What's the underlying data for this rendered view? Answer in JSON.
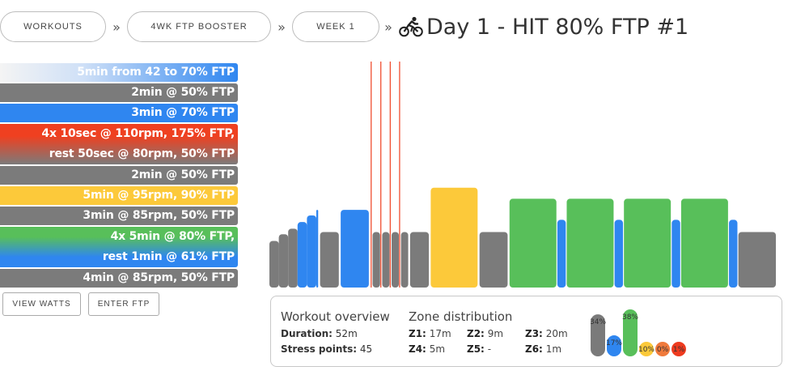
{
  "breadcrumb": {
    "items": [
      {
        "label": "WORKOUTS"
      },
      {
        "label": "4WK FTP BOOSTER"
      },
      {
        "label": "WEEK 1"
      }
    ],
    "separator": "»"
  },
  "page_title": "Day 1 - HIT 80% FTP #1",
  "intervals": [
    {
      "lines": [
        "5min from 42 to 70% FTP"
      ],
      "style": "ramp"
    },
    {
      "lines": [
        "2min @ 50% FTP"
      ],
      "style": "gray"
    },
    {
      "lines": [
        "3min @ 70% FTP"
      ],
      "style": "blue"
    },
    {
      "lines": [
        "4x 10sec @ 110rpm, 175% FTP,",
        "rest 50sec @ 80rpm, 50% FTP"
      ],
      "style": "red-gray"
    },
    {
      "lines": [
        "2min @ 50% FTP"
      ],
      "style": "gray"
    },
    {
      "lines": [
        "5min @ 95rpm, 90% FTP"
      ],
      "style": "yellow"
    },
    {
      "lines": [
        "3min @ 85rpm, 50% FTP"
      ],
      "style": "gray"
    },
    {
      "lines": [
        "4x 5min @ 80% FTP,",
        "rest 1min @ 61% FTP"
      ],
      "style": "green-blue"
    },
    {
      "lines": [
        "4min @ 85rpm, 50% FTP"
      ],
      "style": "gray"
    }
  ],
  "actions": {
    "view_watts": "VIEW WATTS",
    "enter_ftp": "ENTER FTP"
  },
  "overview": {
    "title": "Workout overview",
    "duration_label": "Duration:",
    "duration_value": "52m",
    "stress_label": "Stress points:",
    "stress_value": "45"
  },
  "zones": {
    "title": "Zone distribution",
    "items": [
      {
        "key": "Z1:",
        "value": "17m"
      },
      {
        "key": "Z2:",
        "value": "9m"
      },
      {
        "key": "Z3:",
        "value": "20m"
      },
      {
        "key": "Z4:",
        "value": "5m"
      },
      {
        "key": "Z5:",
        "value": "-"
      },
      {
        "key": "Z6:",
        "value": "1m"
      }
    ],
    "bars": [
      {
        "label": "34%",
        "value": 34,
        "color": "#7a7a7a"
      },
      {
        "label": "17%",
        "value": 17,
        "color": "#2f86f0"
      },
      {
        "label": "38%",
        "value": 38,
        "color": "#58bf5a"
      },
      {
        "label": "10%",
        "value": 10,
        "color": "#fcc93a"
      },
      {
        "label": "0%",
        "value": 0,
        "color": "#f07a3c"
      },
      {
        "label": "1%",
        "value": 1,
        "color": "#ee3b1f"
      }
    ]
  },
  "colors": {
    "gray": "#7b7b7b",
    "blue": "#2f86f0",
    "green": "#58bf5a",
    "yellow": "#fcc93a",
    "red": "#ef4020",
    "ramp_start": "#f4f4f4"
  },
  "workout_profile": [
    {
      "start": 0,
      "end": 1,
      "ftp": 42,
      "zone": "gray"
    },
    {
      "start": 1,
      "end": 2,
      "ftp": 48,
      "zone": "gray"
    },
    {
      "start": 2,
      "end": 3,
      "ftp": 53,
      "zone": "gray"
    },
    {
      "start": 3,
      "end": 4,
      "ftp": 59,
      "zone": "blue"
    },
    {
      "start": 4,
      "end": 5,
      "ftp": 65,
      "zone": "blue"
    },
    {
      "start": 5,
      "end": 5.2,
      "ftp": 70,
      "zone": "blue"
    },
    {
      "start": 5.4,
      "end": 7.4,
      "ftp": 50,
      "zone": "gray"
    },
    {
      "start": 7.6,
      "end": 10.6,
      "ftp": 70,
      "zone": "blue"
    },
    {
      "start": 10.8,
      "end": 10.97,
      "ftp": 175,
      "zone": "red"
    },
    {
      "start": 11.0,
      "end": 11.8,
      "ftp": 50,
      "zone": "gray"
    },
    {
      "start": 11.83,
      "end": 12.0,
      "ftp": 175,
      "zone": "red"
    },
    {
      "start": 12.03,
      "end": 12.8,
      "ftp": 50,
      "zone": "gray"
    },
    {
      "start": 12.83,
      "end": 13.0,
      "ftp": 175,
      "zone": "red"
    },
    {
      "start": 13.03,
      "end": 13.8,
      "ftp": 50,
      "zone": "gray"
    },
    {
      "start": 13.83,
      "end": 14.0,
      "ftp": 175,
      "zone": "red"
    },
    {
      "start": 14.03,
      "end": 14.8,
      "ftp": 50,
      "zone": "gray"
    },
    {
      "start": 15.0,
      "end": 17.0,
      "ftp": 50,
      "zone": "gray"
    },
    {
      "start": 17.2,
      "end": 22.2,
      "ftp": 90,
      "zone": "yellow"
    },
    {
      "start": 22.4,
      "end": 25.4,
      "ftp": 50,
      "zone": "gray"
    },
    {
      "start": 25.6,
      "end": 30.6,
      "ftp": 80,
      "zone": "green"
    },
    {
      "start": 30.7,
      "end": 31.6,
      "ftp": 61,
      "zone": "blue"
    },
    {
      "start": 31.7,
      "end": 36.7,
      "ftp": 80,
      "zone": "green"
    },
    {
      "start": 36.8,
      "end": 37.7,
      "ftp": 61,
      "zone": "blue"
    },
    {
      "start": 37.8,
      "end": 42.8,
      "ftp": 80,
      "zone": "green"
    },
    {
      "start": 42.9,
      "end": 43.8,
      "ftp": 61,
      "zone": "blue"
    },
    {
      "start": 43.9,
      "end": 48.9,
      "ftp": 80,
      "zone": "green"
    },
    {
      "start": 49.0,
      "end": 49.9,
      "ftp": 61,
      "zone": "blue"
    },
    {
      "start": 50.0,
      "end": 54.0,
      "ftp": 50,
      "zone": "gray"
    }
  ]
}
